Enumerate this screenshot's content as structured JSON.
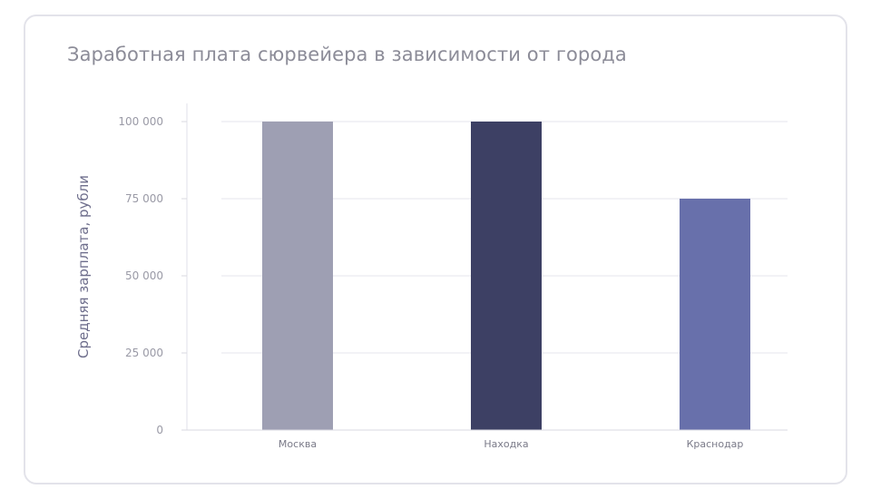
{
  "chart_data": {
    "type": "bar",
    "title": "Заработная плата сюрвейера в зависимости от города",
    "xlabel": "",
    "ylabel": "Средняя зарплата, рубли",
    "categories": [
      "Москва",
      "Находка",
      "Краснодар"
    ],
    "values": [
      100000,
      100000,
      75000
    ],
    "bar_colors": [
      "#9e9fb3",
      "#3d4064",
      "#6870ab"
    ],
    "ylim": [
      0,
      100000
    ],
    "yticks": [
      0,
      25000,
      50000,
      75000,
      100000
    ],
    "ytick_labels": [
      "0",
      "25 000",
      "50 000",
      "75 000",
      "100 000"
    ],
    "grid": true,
    "legend": "none"
  }
}
